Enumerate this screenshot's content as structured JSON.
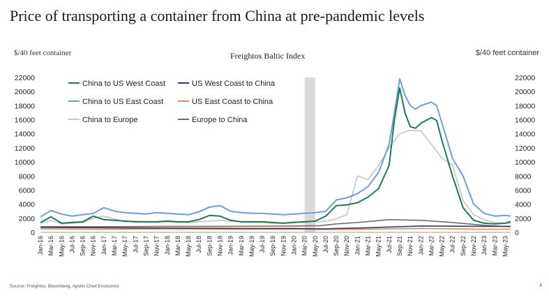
{
  "page": {
    "title": "Price of transporting a container from China at pre-pandemic levels",
    "left_unit": "$/40 feet container",
    "right_unit": "$/40 feet container",
    "source": "Source: Freightos, Bloomberg, Apollo Chief Economist",
    "page_number": "4"
  },
  "chart_data": {
    "type": "line",
    "title": "Freightos Baltic Index",
    "xlabel": "",
    "ylabel": "$/40 feet container",
    "ylim": [
      0,
      22000
    ],
    "yticks": [
      0,
      2000,
      4000,
      6000,
      8000,
      10000,
      12000,
      14000,
      16000,
      18000,
      20000,
      22000
    ],
    "x_start": "2016-01",
    "x_end": "2023-06",
    "x_tick_labels": [
      "Jan-16",
      "Mar-16",
      "May-16",
      "Jul-16",
      "Sep-16",
      "Nov-16",
      "Jan-17",
      "Mar-17",
      "May-17",
      "Jul-17",
      "Sep-17",
      "Nov-17",
      "Jan-18",
      "Mar-18",
      "May-18",
      "Jul-18",
      "Sep-18",
      "Nov-18",
      "Jan-19",
      "Mar-19",
      "May-19",
      "Jul-19",
      "Sep-19",
      "Nov-19",
      "Jan-20",
      "Mar-20",
      "May-20",
      "Jul-20",
      "Sep-20",
      "Nov-20",
      "Jan-21",
      "Mar-21",
      "May-21",
      "Jul-21",
      "Sep-21",
      "Nov-21",
      "Jan-22",
      "Mar-22",
      "May-22",
      "Jul-22",
      "Sep-22",
      "Nov-22",
      "Jan-23",
      "Mar-23",
      "May-23"
    ],
    "shaded_region": {
      "start": "2020-03",
      "end": "2020-05",
      "color": "#d9d9d9"
    },
    "series": [
      {
        "name": "China to US West Coast",
        "color": "#1f7a52",
        "points": [
          [
            "2016-01",
            1400
          ],
          [
            "2016-03",
            2200
          ],
          [
            "2016-05",
            1300
          ],
          [
            "2016-07",
            1400
          ],
          [
            "2016-09",
            1500
          ],
          [
            "2016-11",
            2300
          ],
          [
            "2017-01",
            1800
          ],
          [
            "2017-03",
            1700
          ],
          [
            "2017-05",
            1600
          ],
          [
            "2017-07",
            1500
          ],
          [
            "2017-09",
            1500
          ],
          [
            "2017-11",
            1500
          ],
          [
            "2018-01",
            1600
          ],
          [
            "2018-03",
            1500
          ],
          [
            "2018-05",
            1500
          ],
          [
            "2018-07",
            1800
          ],
          [
            "2018-09",
            2400
          ],
          [
            "2018-11",
            2300
          ],
          [
            "2019-01",
            1700
          ],
          [
            "2019-03",
            1500
          ],
          [
            "2019-05",
            1500
          ],
          [
            "2019-07",
            1500
          ],
          [
            "2019-09",
            1400
          ],
          [
            "2019-11",
            1300
          ],
          [
            "2020-01",
            1400
          ],
          [
            "2020-03",
            1500
          ],
          [
            "2020-05",
            1600
          ],
          [
            "2020-07",
            2300
          ],
          [
            "2020-09",
            3800
          ],
          [
            "2020-11",
            3900
          ],
          [
            "2021-01",
            4200
          ],
          [
            "2021-03",
            5000
          ],
          [
            "2021-05",
            6200
          ],
          [
            "2021-07",
            9500
          ],
          [
            "2021-08",
            16000
          ],
          [
            "2021-09",
            20500
          ],
          [
            "2021-10",
            17000
          ],
          [
            "2021-11",
            15000
          ],
          [
            "2021-12",
            14800
          ],
          [
            "2022-01",
            15500
          ],
          [
            "2022-03",
            16300
          ],
          [
            "2022-04",
            15900
          ],
          [
            "2022-05",
            13000
          ],
          [
            "2022-07",
            8000
          ],
          [
            "2022-09",
            3500
          ],
          [
            "2022-11",
            1700
          ],
          [
            "2023-01",
            1300
          ],
          [
            "2023-03",
            1200
          ],
          [
            "2023-05",
            1300
          ],
          [
            "2023-06",
            1500
          ]
        ]
      },
      {
        "name": "US West Coast to China",
        "color": "#2c3e6e",
        "points": [
          [
            "2016-01",
            700
          ],
          [
            "2017-01",
            650
          ],
          [
            "2018-01",
            600
          ],
          [
            "2019-01",
            550
          ],
          [
            "2020-01",
            550
          ],
          [
            "2020-06",
            500
          ],
          [
            "2021-01",
            600
          ],
          [
            "2022-01",
            900
          ],
          [
            "2023-01",
            850
          ],
          [
            "2023-06",
            850
          ]
        ]
      },
      {
        "name": "China to US East Coast",
        "color": "#6f9fd1",
        "points": [
          [
            "2016-01",
            2200
          ],
          [
            "2016-03",
            3100
          ],
          [
            "2016-05",
            2600
          ],
          [
            "2016-07",
            2300
          ],
          [
            "2016-09",
            2500
          ],
          [
            "2016-11",
            2700
          ],
          [
            "2017-01",
            3500
          ],
          [
            "2017-03",
            3000
          ],
          [
            "2017-05",
            2800
          ],
          [
            "2017-07",
            2700
          ],
          [
            "2017-09",
            2600
          ],
          [
            "2017-11",
            2800
          ],
          [
            "2018-01",
            2700
          ],
          [
            "2018-03",
            2600
          ],
          [
            "2018-05",
            2500
          ],
          [
            "2018-07",
            2900
          ],
          [
            "2018-09",
            3600
          ],
          [
            "2018-11",
            3800
          ],
          [
            "2019-01",
            3000
          ],
          [
            "2019-03",
            2800
          ],
          [
            "2019-05",
            2700
          ],
          [
            "2019-07",
            2700
          ],
          [
            "2019-09",
            2600
          ],
          [
            "2019-11",
            2500
          ],
          [
            "2020-01",
            2600
          ],
          [
            "2020-03",
            2700
          ],
          [
            "2020-05",
            2800
          ],
          [
            "2020-07",
            3000
          ],
          [
            "2020-09",
            4600
          ],
          [
            "2020-11",
            4900
          ],
          [
            "2021-01",
            5500
          ],
          [
            "2021-03",
            6500
          ],
          [
            "2021-05",
            8500
          ],
          [
            "2021-07",
            12500
          ],
          [
            "2021-08",
            17000
          ],
          [
            "2021-09",
            21800
          ],
          [
            "2021-10",
            19500
          ],
          [
            "2021-11",
            18000
          ],
          [
            "2021-12",
            17500
          ],
          [
            "2022-01",
            18000
          ],
          [
            "2022-03",
            18500
          ],
          [
            "2022-04",
            18000
          ],
          [
            "2022-05",
            15500
          ],
          [
            "2022-07",
            10500
          ],
          [
            "2022-09",
            8000
          ],
          [
            "2022-11",
            4000
          ],
          [
            "2023-01",
            2700
          ],
          [
            "2023-03",
            2300
          ],
          [
            "2023-05",
            2400
          ],
          [
            "2023-06",
            2300
          ]
        ]
      },
      {
        "name": "US East Coast to China",
        "color": "#e08a4f",
        "points": [
          [
            "2016-01",
            500
          ],
          [
            "2017-01",
            450
          ],
          [
            "2018-01",
            500
          ],
          [
            "2019-01",
            450
          ],
          [
            "2020-01",
            450
          ],
          [
            "2020-06",
            400
          ],
          [
            "2021-01",
            450
          ],
          [
            "2022-01",
            550
          ],
          [
            "2023-01",
            450
          ],
          [
            "2023-06",
            450
          ]
        ]
      },
      {
        "name": "China to Europe",
        "color": "#c4c4c4",
        "points": [
          [
            "2016-01",
            1300
          ],
          [
            "2016-03",
            1700
          ],
          [
            "2016-05",
            1200
          ],
          [
            "2016-07",
            1300
          ],
          [
            "2016-09",
            1400
          ],
          [
            "2016-11",
            2000
          ],
          [
            "2017-01",
            2300
          ],
          [
            "2017-03",
            1900
          ],
          [
            "2017-05",
            1500
          ],
          [
            "2017-07",
            1600
          ],
          [
            "2017-09",
            1500
          ],
          [
            "2017-11",
            1400
          ],
          [
            "2018-01",
            1500
          ],
          [
            "2018-03",
            1400
          ],
          [
            "2018-05",
            1400
          ],
          [
            "2018-07",
            1500
          ],
          [
            "2018-09",
            1600
          ],
          [
            "2018-11",
            1700
          ],
          [
            "2019-01",
            1600
          ],
          [
            "2019-03",
            1500
          ],
          [
            "2019-05",
            1400
          ],
          [
            "2019-07",
            1400
          ],
          [
            "2019-09",
            1300
          ],
          [
            "2019-11",
            1300
          ],
          [
            "2020-01",
            1500
          ],
          [
            "2020-03",
            1400
          ],
          [
            "2020-05",
            1500
          ],
          [
            "2020-07",
            1600
          ],
          [
            "2020-09",
            1900
          ],
          [
            "2020-11",
            2500
          ],
          [
            "2021-01",
            8000
          ],
          [
            "2021-03",
            7500
          ],
          [
            "2021-05",
            9500
          ],
          [
            "2021-07",
            12000
          ],
          [
            "2021-09",
            14000
          ],
          [
            "2021-11",
            14500
          ],
          [
            "2022-01",
            14400
          ],
          [
            "2022-03",
            12500
          ],
          [
            "2022-05",
            10500
          ],
          [
            "2022-07",
            9500
          ],
          [
            "2022-09",
            4500
          ],
          [
            "2022-11",
            2500
          ],
          [
            "2023-01",
            1800
          ],
          [
            "2023-03",
            1400
          ],
          [
            "2023-05",
            1300
          ],
          [
            "2023-06",
            1300
          ]
        ]
      },
      {
        "name": "Europe to China",
        "color": "#7a6a64",
        "points": [
          [
            "2016-01",
            800
          ],
          [
            "2017-01",
            800
          ],
          [
            "2018-01",
            850
          ],
          [
            "2019-01",
            850
          ],
          [
            "2020-01",
            900
          ],
          [
            "2020-06",
            950
          ],
          [
            "2020-09",
            1200
          ],
          [
            "2021-01",
            1400
          ],
          [
            "2021-07",
            1800
          ],
          [
            "2022-01",
            1700
          ],
          [
            "2022-07",
            1400
          ],
          [
            "2023-01",
            1000
          ],
          [
            "2023-06",
            800
          ]
        ]
      }
    ]
  }
}
